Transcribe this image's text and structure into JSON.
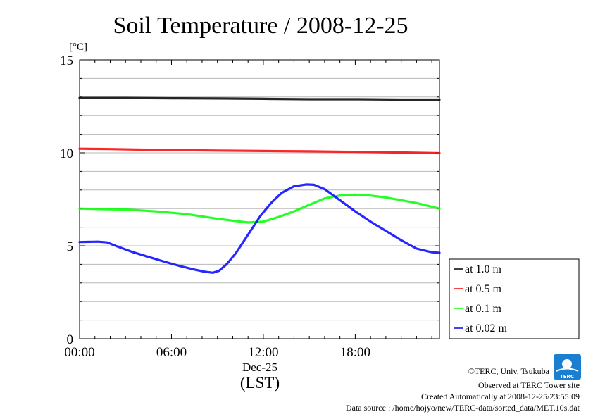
{
  "chart_data": {
    "type": "line",
    "title": "Soil Temperature / 2008-12-25",
    "ylabel": "[°C]",
    "xlabel_date": "Dec-25",
    "xlabel_tz": "(LST)",
    "ylim": [
      0,
      15
    ],
    "xlim_hours": [
      0,
      23.5
    ],
    "y_ticks": [
      "0",
      "5",
      "10",
      "15"
    ],
    "x_ticks": [
      {
        "hour": 0,
        "label": "00:00"
      },
      {
        "hour": 6,
        "label": "06:00"
      },
      {
        "hour": 12,
        "label": "12:00"
      },
      {
        "hour": 18,
        "label": "18:00"
      }
    ],
    "grid": true,
    "legend_position": "right",
    "series": [
      {
        "name": "at 1.0 m",
        "color": "#000000",
        "points": [
          [
            0,
            12.95
          ],
          [
            3,
            12.95
          ],
          [
            6,
            12.93
          ],
          [
            9,
            12.92
          ],
          [
            12,
            12.9
          ],
          [
            15,
            12.88
          ],
          [
            18,
            12.88
          ],
          [
            21,
            12.86
          ],
          [
            23.5,
            12.86
          ]
        ]
      },
      {
        "name": "at 0.5 m",
        "color": "#ff0000",
        "points": [
          [
            0,
            10.22
          ],
          [
            2,
            10.2
          ],
          [
            4,
            10.17
          ],
          [
            6,
            10.15
          ],
          [
            9,
            10.12
          ],
          [
            12,
            10.1
          ],
          [
            15,
            10.08
          ],
          [
            18,
            10.05
          ],
          [
            21,
            10.02
          ],
          [
            23.5,
            9.98
          ]
        ]
      },
      {
        "name": "at 0.1 m",
        "color": "#00ff00",
        "points": [
          [
            0,
            7.0
          ],
          [
            1.5,
            6.97
          ],
          [
            3,
            6.95
          ],
          [
            5,
            6.85
          ],
          [
            7,
            6.7
          ],
          [
            9,
            6.45
          ],
          [
            11,
            6.25
          ],
          [
            12,
            6.3
          ],
          [
            13,
            6.55
          ],
          [
            14,
            6.85
          ],
          [
            15,
            7.2
          ],
          [
            16,
            7.55
          ],
          [
            17,
            7.7
          ],
          [
            18,
            7.75
          ],
          [
            19,
            7.7
          ],
          [
            20,
            7.6
          ],
          [
            21,
            7.45
          ],
          [
            22,
            7.3
          ],
          [
            23.5,
            7.0
          ]
        ]
      },
      {
        "name": "at 0.02 m",
        "color": "#0000ff",
        "points": [
          [
            0,
            5.2
          ],
          [
            1.2,
            5.22
          ],
          [
            1.8,
            5.18
          ],
          [
            2.5,
            4.95
          ],
          [
            3.5,
            4.65
          ],
          [
            4.5,
            4.4
          ],
          [
            5.5,
            4.15
          ],
          [
            6.5,
            3.92
          ],
          [
            7.5,
            3.72
          ],
          [
            8.2,
            3.6
          ],
          [
            8.7,
            3.55
          ],
          [
            9.1,
            3.65
          ],
          [
            9.6,
            4.0
          ],
          [
            10.2,
            4.6
          ],
          [
            11,
            5.6
          ],
          [
            11.8,
            6.6
          ],
          [
            12.5,
            7.3
          ],
          [
            13.2,
            7.85
          ],
          [
            14,
            8.2
          ],
          [
            14.8,
            8.3
          ],
          [
            15.3,
            8.28
          ],
          [
            16,
            8.05
          ],
          [
            17,
            7.45
          ],
          [
            18,
            6.85
          ],
          [
            19,
            6.3
          ],
          [
            20,
            5.8
          ],
          [
            21,
            5.3
          ],
          [
            22,
            4.85
          ],
          [
            23,
            4.65
          ],
          [
            23.5,
            4.62
          ]
        ]
      }
    ]
  },
  "footer": {
    "copyright": "©TERC, Univ. Tsukuba",
    "observed": "Observed at TERC Tower site",
    "created": "Created Automatically at 2008-12-25/23:55:09",
    "source": "Data source : /home/hojyo/new/TERC-data/sorted_data/MET.10s.dat"
  },
  "logo": {
    "text": "TERC",
    "color": "#1a7fd0"
  }
}
